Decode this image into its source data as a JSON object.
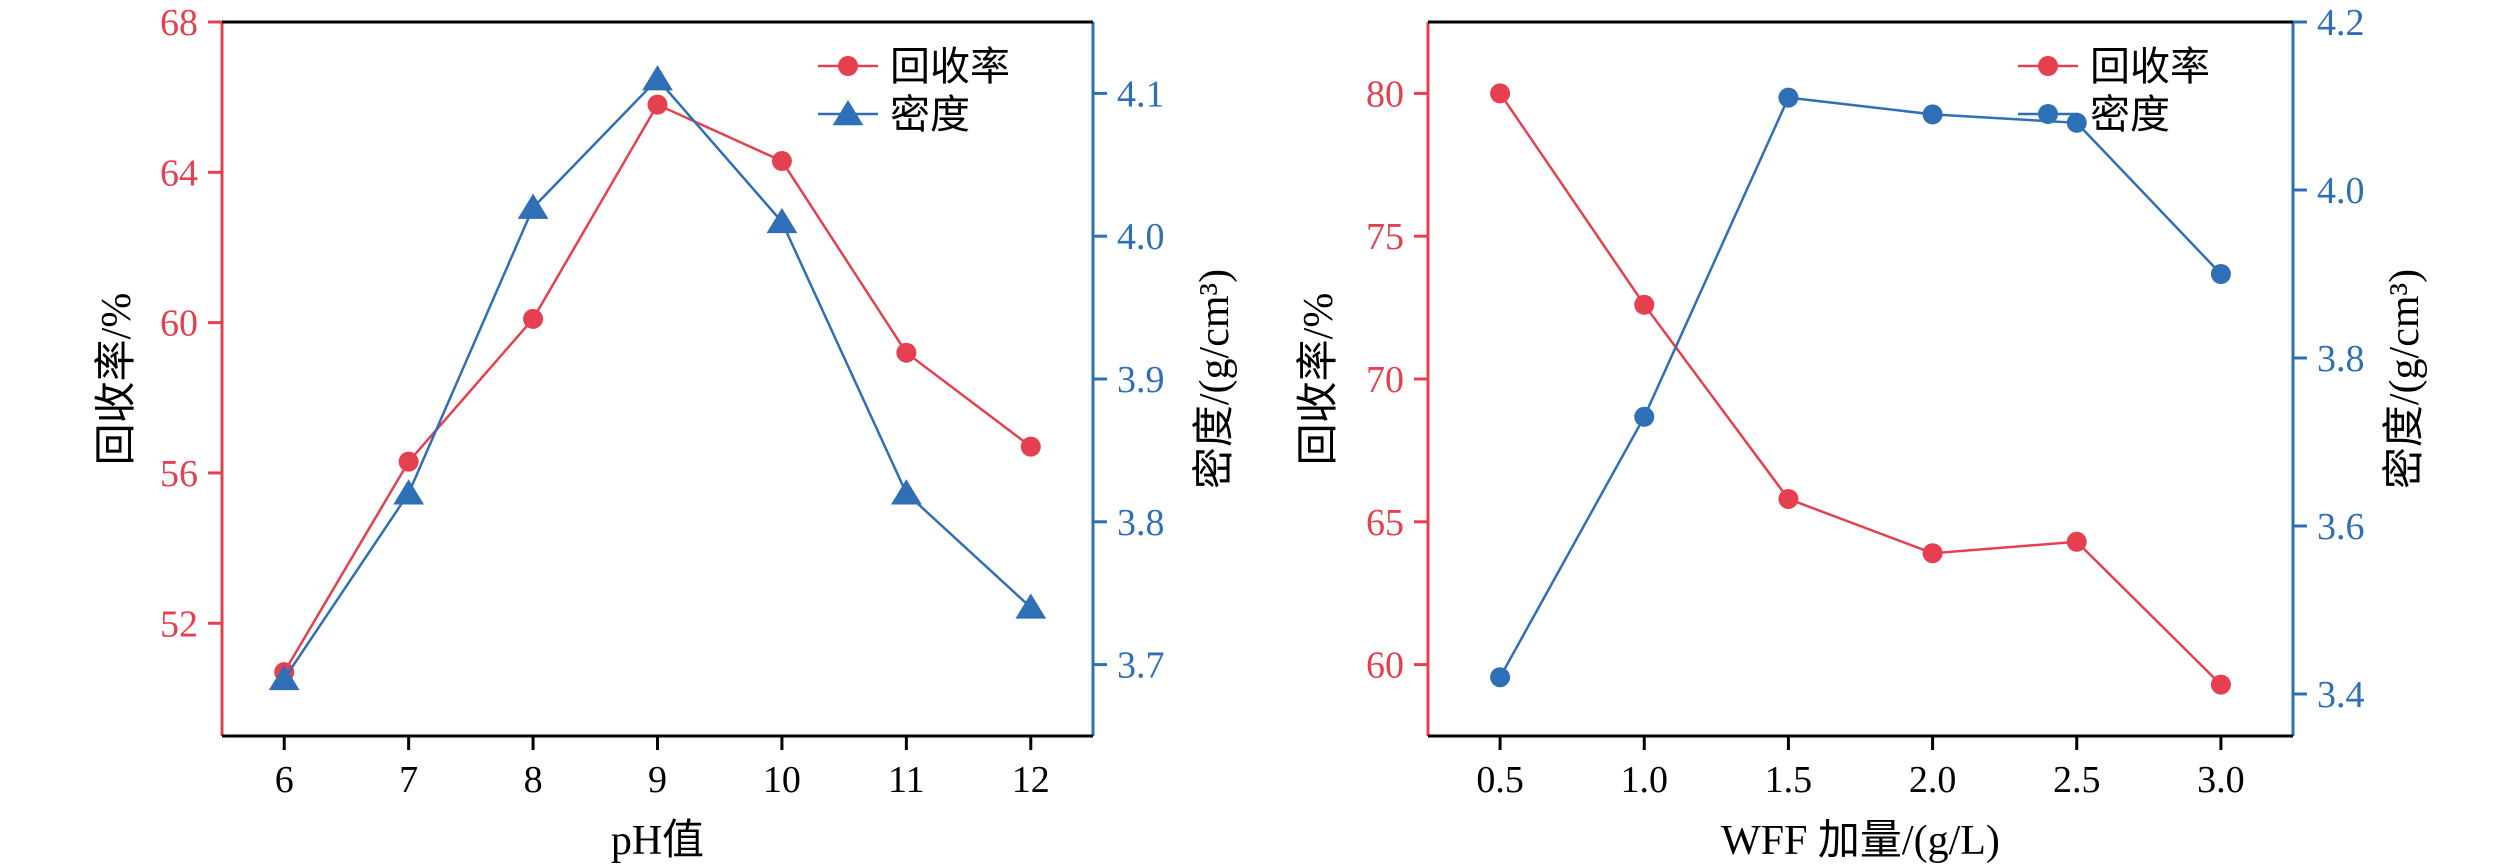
{
  "colors": {
    "red": "#e5404f",
    "blue": "#2f6fb6",
    "axis": "#000000"
  },
  "chart_data": [
    {
      "type": "line",
      "xlabel": "pH值",
      "ylabel_left": "回收率/%",
      "ylabel_right": "密度/(g/cm³)",
      "x": [
        6,
        7,
        8,
        9,
        10,
        11,
        12
      ],
      "x_ticks": [
        "6",
        "7",
        "8",
        "9",
        "10",
        "11",
        "12"
      ],
      "xlim": [
        5.5,
        12.5
      ],
      "ylim_left": [
        49,
        68
      ],
      "yticks_left": [
        "52",
        "56",
        "60",
        "64",
        "68"
      ],
      "ylim_right": [
        3.65,
        4.15
      ],
      "yticks_right": [
        "3.7",
        "3.8",
        "3.9",
        "4.0",
        "4.1"
      ],
      "legend_position": "top-right",
      "series": [
        {
          "name": "回收率",
          "axis": "left",
          "marker": "circle",
          "color": "#e5404f",
          "values": [
            50.7,
            56.3,
            60.1,
            65.8,
            64.3,
            59.2,
            56.7
          ]
        },
        {
          "name": "密度",
          "axis": "right",
          "marker": "triangle",
          "color": "#2f6fb6",
          "values": [
            3.69,
            3.82,
            4.02,
            4.11,
            4.01,
            3.82,
            3.74
          ]
        }
      ]
    },
    {
      "type": "line",
      "xlabel": "WFF 加量/(g/L)",
      "ylabel_left": "回收率/%",
      "ylabel_right": "密度/(g/cm³)",
      "x": [
        0.5,
        1.0,
        1.5,
        2.0,
        2.5,
        3.0
      ],
      "x_ticks": [
        "0.5",
        "1.0",
        "1.5",
        "2.0",
        "2.5",
        "3.0"
      ],
      "xlim": [
        0.25,
        3.25
      ],
      "ylim_left": [
        57.5,
        82.5
      ],
      "yticks_left": [
        "60",
        "65",
        "70",
        "75",
        "80"
      ],
      "ylim_right": [
        3.35,
        4.2
      ],
      "yticks_right": [
        "3.4",
        "3.6",
        "3.8",
        "4.0",
        "4.2"
      ],
      "legend_position": "top-right",
      "series": [
        {
          "name": "回收率",
          "axis": "left",
          "marker": "circle",
          "color": "#e5404f",
          "values": [
            80.0,
            72.6,
            65.8,
            63.9,
            64.3,
            59.3
          ]
        },
        {
          "name": "密度",
          "axis": "right",
          "marker": "circle",
          "color": "#2f6fb6",
          "values": [
            3.42,
            3.73,
            4.11,
            4.09,
            4.08,
            3.9
          ]
        }
      ]
    }
  ]
}
